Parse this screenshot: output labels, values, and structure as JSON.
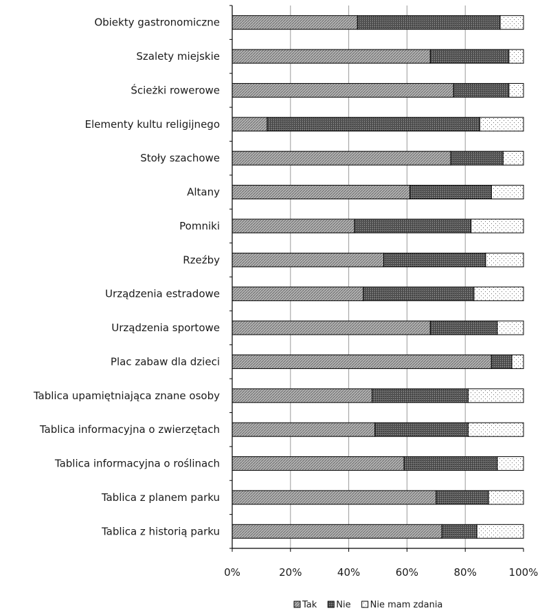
{
  "chart_data": {
    "type": "bar",
    "orientation": "horizontal",
    "stacked": "percent",
    "title": "",
    "xlabel": "",
    "ylabel": "",
    "categories": [
      "Obiekty gastronomiczne",
      "Szalety miejskie",
      "Ścieżki rowerowe",
      "Elementy kultu religijnego",
      "Stoły szachowe",
      "Altany",
      "Pomniki",
      "Rzeźby",
      "Urządzenia estradowe",
      "Urządzenia sportowe",
      "Plac zabaw dla dzieci",
      "Tablica upamiętniająca znane osoby",
      "Tablica informacyjna o zwierzętach",
      "Tablica informacyjna o roślinach",
      "Tablica z planem parku",
      "Tablica z historią parku"
    ],
    "series": [
      {
        "name": "Tak",
        "values": [
          43,
          68,
          76,
          12,
          75,
          61,
          42,
          52,
          45,
          68,
          89,
          48,
          49,
          59,
          70,
          72
        ]
      },
      {
        "name": "Nie",
        "values": [
          49,
          27,
          19,
          73,
          18,
          28,
          40,
          35,
          38,
          23,
          7,
          33,
          32,
          32,
          18,
          12
        ]
      },
      {
        "name": "Nie mam zdania",
        "values": [
          8,
          5,
          5,
          15,
          7,
          11,
          18,
          13,
          17,
          9,
          4,
          19,
          19,
          9,
          12,
          16
        ]
      }
    ],
    "xlim": [
      0,
      100
    ],
    "x_ticks": [
      "0%",
      "20%",
      "40%",
      "60%",
      "80%",
      "100%"
    ],
    "grid": true,
    "legend_position": "bottom-right",
    "colors": {
      "Tak": "#8c8c8c",
      "Nie": "#4a4a4a",
      "Nie mam zdania": "#ffffff",
      "grid": "#9a9a9a",
      "axis": "#000000"
    }
  }
}
